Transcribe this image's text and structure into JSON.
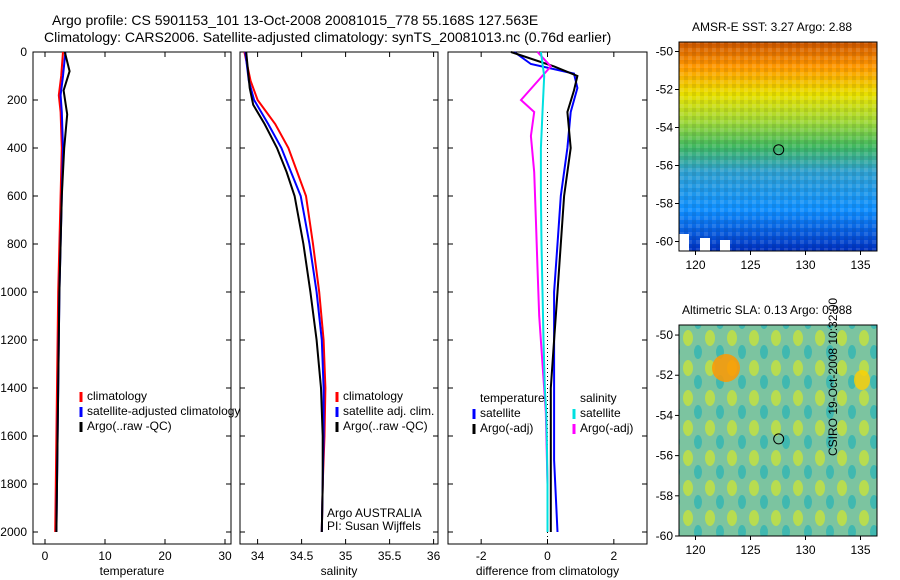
{
  "header": {
    "line1": "Argo profile: CS 5901153_101 13-Oct-2008 20081015_778 55.168S 127.563E",
    "line2": "Climatology: CARS2006. Satellite-adjusted climatology: synTS_20081013.nc (0.76d earlier)"
  },
  "side_stamp": "CSIRO 19-Oct-2008 10:32:00",
  "colors": {
    "climatology": "#ff0000",
    "satellite": "#0000ff",
    "argo": "#000000",
    "argo_adj_salinity": "#ff00ff",
    "satellite_salinity": "#00e0e0"
  },
  "chart_data": [
    {
      "type": "line",
      "xlabel": "temperature",
      "ylabel": "",
      "xlim": [
        -2,
        31
      ],
      "ylim": [
        2050,
        0
      ],
      "xticks": [
        0,
        10,
        20,
        30
      ],
      "yticks": [
        0,
        200,
        400,
        600,
        800,
        1000,
        1200,
        1400,
        1600,
        1800,
        2000
      ],
      "legend": {
        "entries": [
          "climatology",
          "satellite-adjusted climatology",
          "Argo(..raw -QC)"
        ],
        "placement": "lower-right"
      },
      "series": [
        {
          "name": "climatology",
          "color": "#ff0000",
          "x": [
            3.0,
            2.7,
            2.3,
            2.6,
            2.8,
            2.6,
            2.4,
            2.2,
            2.1,
            2.0,
            1.9,
            1.8,
            1.7
          ],
          "y": [
            0,
            100,
            180,
            250,
            400,
            600,
            800,
            1000,
            1200,
            1400,
            1600,
            1800,
            2000
          ]
        },
        {
          "name": "satellite-adjusted climatology",
          "color": "#0000ff",
          "x": [
            3.4,
            3.0,
            2.6,
            2.8,
            3.0,
            2.8,
            2.6,
            2.4,
            2.3,
            2.2,
            2.1,
            2.0,
            1.9
          ],
          "y": [
            0,
            100,
            180,
            250,
            400,
            600,
            800,
            1000,
            1200,
            1400,
            1600,
            1800,
            2000
          ]
        },
        {
          "name": "Argo(..raw -QC)",
          "color": "#000000",
          "x": [
            3.3,
            4.1,
            3.1,
            3.7,
            3.2,
            2.8,
            2.6,
            2.4,
            2.3,
            2.2,
            2.1,
            2.0,
            1.9
          ],
          "y": [
            0,
            80,
            160,
            260,
            400,
            600,
            800,
            1000,
            1200,
            1400,
            1600,
            1800,
            2000
          ]
        }
      ]
    },
    {
      "type": "line",
      "xlabel": "salinity",
      "xlim": [
        33.8,
        36.05
      ],
      "ylim": [
        2050,
        0
      ],
      "xticks": [
        34,
        34.5,
        35,
        35.5,
        36
      ],
      "legend": {
        "entries": [
          "climatology",
          "satellite adj. clim.",
          "Argo(..raw -QC)"
        ],
        "placement": "lower-right"
      },
      "annotations": [
        "Argo AUSTRALIA",
        "PI: Susan Wijffels"
      ],
      "series": [
        {
          "name": "climatology",
          "color": "#ff0000",
          "x": [
            33.85,
            33.92,
            34.0,
            34.2,
            34.35,
            34.45,
            34.55,
            34.63,
            34.7,
            34.75,
            34.77,
            34.76,
            34.74,
            34.73
          ],
          "y": [
            0,
            120,
            200,
            300,
            400,
            500,
            600,
            800,
            1000,
            1200,
            1400,
            1600,
            1800,
            2000
          ]
        },
        {
          "name": "satellite adj. clim.",
          "color": "#0000ff",
          "x": [
            33.86,
            33.9,
            33.96,
            34.12,
            34.27,
            34.38,
            34.49,
            34.59,
            34.67,
            34.73,
            34.75,
            34.75,
            34.74,
            34.73
          ],
          "y": [
            0,
            120,
            200,
            300,
            400,
            500,
            600,
            800,
            1000,
            1200,
            1400,
            1600,
            1800,
            2000
          ]
        },
        {
          "name": "Argo(..raw -QC)",
          "color": "#000000",
          "x": [
            33.87,
            33.91,
            33.95,
            34.08,
            34.22,
            34.33,
            34.42,
            34.52,
            34.6,
            34.67,
            34.72,
            34.74,
            34.74,
            34.73
          ],
          "y": [
            0,
            150,
            220,
            300,
            400,
            500,
            600,
            800,
            1000,
            1200,
            1400,
            1600,
            1800,
            2000
          ]
        }
      ]
    },
    {
      "type": "line",
      "xlabel": "difference from climatology",
      "xlim": [
        -3,
        3
      ],
      "ylim": [
        2050,
        0
      ],
      "xticks": [
        -2,
        0,
        2
      ],
      "legend": {
        "entries": [
          "temperature",
          "satellite",
          "Argo(-adj)",
          "salinity",
          "satellite",
          "Argo(-adj)"
        ],
        "placement": "lower-center"
      },
      "series": [
        {
          "name": "satellite",
          "group": "temperature",
          "color": "#0000ff",
          "x": [
            -1.0,
            -0.5,
            0.8,
            0.9,
            0.7,
            0.6,
            0.4,
            0.3,
            0.2,
            0.2,
            0.2,
            0.2,
            0.3
          ],
          "y": [
            0,
            50,
            90,
            150,
            250,
            400,
            600,
            800,
            1000,
            1200,
            1400,
            1700,
            2000
          ]
        },
        {
          "name": "Argo(-adj)",
          "group": "temperature",
          "color": "#000000",
          "x": [
            -1.1,
            0.2,
            0.9,
            0.8,
            0.6,
            0.7,
            0.5,
            0.4,
            0.3,
            0.2,
            0.1,
            0.1,
            0.1
          ],
          "y": [
            0,
            60,
            100,
            160,
            250,
            400,
            600,
            800,
            1000,
            1200,
            1400,
            1700,
            2000
          ]
        },
        {
          "name": "Argo(-adj)",
          "group": "salinity",
          "color": "#ff00ff",
          "x": [
            -0.3,
            0.1,
            -0.8,
            -0.4,
            -0.5,
            -0.4,
            -0.35,
            -0.3,
            -0.25,
            -0.15,
            -0.05,
            0.0,
            0.0
          ],
          "y": [
            0,
            60,
            200,
            250,
            350,
            500,
            700,
            900,
            1100,
            1300,
            1500,
            1800,
            2000
          ]
        },
        {
          "name": "satellite",
          "group": "salinity",
          "color": "#00e0e0",
          "x": [
            -0.2,
            -0.1,
            -0.15,
            -0.2,
            -0.2,
            -0.18,
            -0.15,
            -0.12,
            -0.08,
            -0.04,
            -0.02,
            0.0,
            0.0
          ],
          "y": [
            0,
            100,
            250,
            400,
            600,
            800,
            1000,
            1200,
            1400,
            1500,
            1600,
            1800,
            2000
          ]
        }
      ]
    },
    {
      "type": "heatmap",
      "title": "AMSR-E SST: 3.27 Argo: 2.88",
      "xlim": [
        118.5,
        136.5
      ],
      "ylim": [
        -60.5,
        -49.5
      ],
      "xticks": [
        120,
        125,
        130,
        135
      ],
      "yticks": [
        -50,
        -52,
        -54,
        -56,
        -58,
        -60
      ],
      "marker": {
        "lon": 127.563,
        "lat": -55.168
      }
    },
    {
      "type": "heatmap",
      "title": "Altimetric SLA: 0.13 Argo: 0.088",
      "xlim": [
        118.5,
        136.5
      ],
      "ylim": [
        -60,
        -49.5
      ],
      "xticks": [
        120,
        125,
        130,
        135
      ],
      "yticks": [
        -50,
        -52,
        -54,
        -56,
        -58,
        -60
      ],
      "marker": {
        "lon": 127.563,
        "lat": -55.168
      }
    }
  ]
}
